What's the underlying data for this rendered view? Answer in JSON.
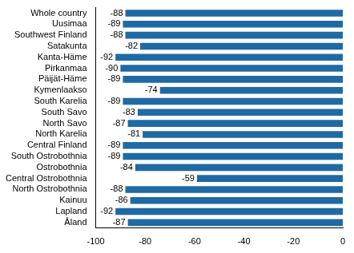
{
  "chart_data": {
    "type": "bar",
    "orientation": "horizontal",
    "categories": [
      "Whole country",
      "Uusimaa",
      "Southwest Finland",
      "Satakunta",
      "Kanta-Häme",
      "Pirkanmaa",
      "Päijät-Häme",
      "Kymenlaakso",
      "South Karelia",
      "South Savo",
      "North Savo",
      "North Karelia",
      "Central Finland",
      "South Ostrobothnia",
      "Ostrobothnia",
      "Central Ostrobothnia",
      "North Ostrobothnia",
      "Kainuu",
      "Lapland",
      "Åland"
    ],
    "values": [
      -88,
      -89,
      -88,
      -82,
      -92,
      -90,
      -89,
      -74,
      -89,
      -83,
      -87,
      -81,
      -89,
      -89,
      -84,
      -59,
      -88,
      -86,
      -92,
      -87
    ],
    "color": "#1f6aa5",
    "xlim": [
      -100,
      0
    ],
    "xticks": [
      -100,
      -80,
      -60,
      -40,
      -20,
      0
    ],
    "grid": false,
    "data_labels": true
  }
}
